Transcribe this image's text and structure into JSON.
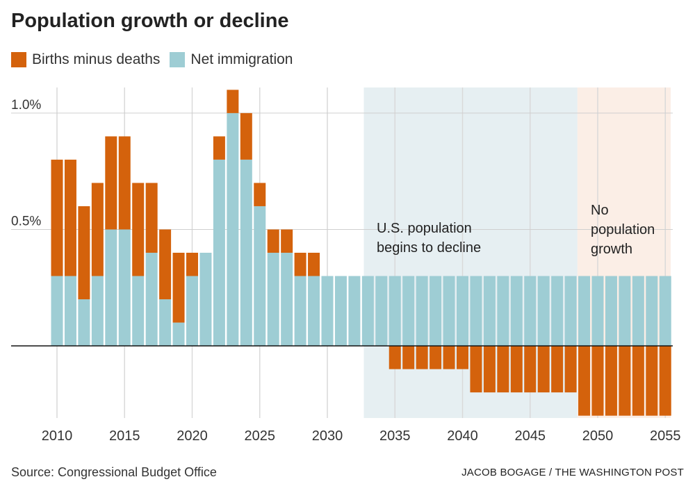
{
  "header": {
    "title": "Population growth or decline"
  },
  "legend": {
    "births_label": "Births minus deaths",
    "immigration_label": "Net immigration"
  },
  "colors": {
    "births": "#d4620c",
    "immigration": "#9ecdd4",
    "decline_zone": "#e6eff2",
    "no_growth_zone": "#fbeee6"
  },
  "annotations": {
    "decline_line1": "U.S. population",
    "decline_line2": "begins to decline",
    "nogrowth_line1": "No",
    "nogrowth_line2": "population",
    "nogrowth_line3": "growth"
  },
  "footer": {
    "source": "Source: Congressional Budget Office",
    "credit": "JACOB BOGAGE / THE WASHINGTON POST"
  },
  "chart_data": {
    "type": "bar",
    "stacked": true,
    "title": "Population growth or decline",
    "xlabel": "",
    "ylabel": "",
    "ylim": [
      -0.31,
      1.11
    ],
    "y_ticks": [
      {
        "value": 1.0,
        "label": "1.0%"
      },
      {
        "value": 0.5,
        "label": "0.5%"
      }
    ],
    "x_ticks": [
      {
        "value": 2010,
        "label": "2010"
      },
      {
        "value": 2015,
        "label": "2015"
      },
      {
        "value": 2020,
        "label": "2020"
      },
      {
        "value": 2025,
        "label": "2025"
      },
      {
        "value": 2030,
        "label": "2030"
      },
      {
        "value": 2035,
        "label": "2035"
      },
      {
        "value": 2040,
        "label": "2040"
      },
      {
        "value": 2045,
        "label": "2045"
      },
      {
        "value": 2050,
        "label": "2050"
      },
      {
        "value": 2055,
        "label": "2055"
      }
    ],
    "categories": [
      2010,
      2011,
      2012,
      2013,
      2014,
      2015,
      2016,
      2017,
      2018,
      2019,
      2020,
      2021,
      2022,
      2023,
      2024,
      2025,
      2026,
      2027,
      2028,
      2029,
      2030,
      2031,
      2032,
      2033,
      2034,
      2035,
      2036,
      2037,
      2038,
      2039,
      2040,
      2041,
      2042,
      2043,
      2044,
      2045,
      2046,
      2047,
      2048,
      2049,
      2050,
      2051,
      2052,
      2053,
      2054,
      2055
    ],
    "series": [
      {
        "name": "Net immigration",
        "values": [
          0.3,
          0.3,
          0.2,
          0.3,
          0.5,
          0.5,
          0.3,
          0.4,
          0.2,
          0.1,
          0.3,
          0.4,
          0.8,
          1.0,
          0.8,
          0.6,
          0.4,
          0.4,
          0.3,
          0.3,
          0.3,
          0.3,
          0.3,
          0.3,
          0.3,
          0.3,
          0.3,
          0.3,
          0.3,
          0.3,
          0.3,
          0.3,
          0.3,
          0.3,
          0.3,
          0.3,
          0.3,
          0.3,
          0.3,
          0.3,
          0.3,
          0.3,
          0.3,
          0.3,
          0.3,
          0.3
        ]
      },
      {
        "name": "Births minus deaths",
        "values": [
          0.5,
          0.5,
          0.4,
          0.4,
          0.4,
          0.4,
          0.4,
          0.3,
          0.3,
          0.3,
          0.1,
          0.0,
          0.1,
          0.1,
          0.2,
          0.1,
          0.1,
          0.1,
          0.1,
          0.1,
          0.0,
          0.0,
          0.0,
          0.0,
          0.0,
          -0.1,
          -0.1,
          -0.1,
          -0.1,
          -0.1,
          -0.1,
          -0.2,
          -0.2,
          -0.2,
          -0.2,
          -0.2,
          -0.2,
          -0.2,
          -0.2,
          -0.3,
          -0.3,
          -0.3,
          -0.3,
          -0.3,
          -0.3,
          -0.3
        ]
      }
    ],
    "shaded_regions": [
      {
        "name": "decline",
        "from": 2032.7,
        "to": 2048.5
      },
      {
        "name": "no-growth",
        "from": 2048.5,
        "to": 2055.5
      }
    ]
  }
}
